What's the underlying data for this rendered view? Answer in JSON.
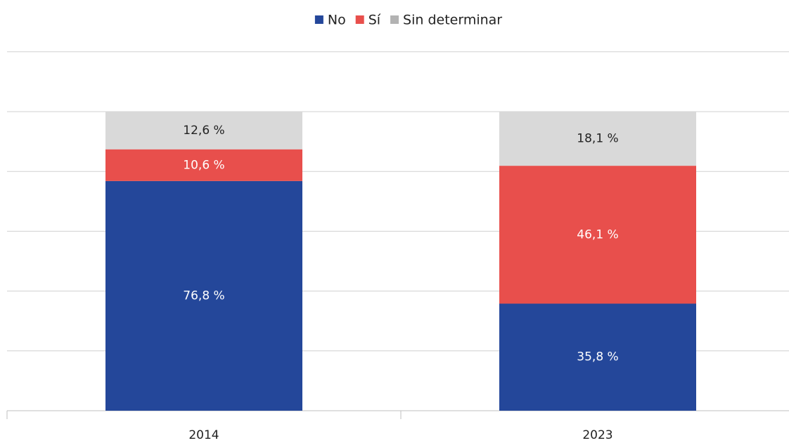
{
  "chart_data": {
    "type": "stacked_bar",
    "categories": [
      "2014",
      "2023"
    ],
    "series": [
      {
        "name": "No",
        "color": "#24479a",
        "values": [
          76.8,
          35.8
        ],
        "value_labels": [
          "76,8 %",
          "35,8 %"
        ]
      },
      {
        "name": "Sí",
        "color": "#e84f4c",
        "values": [
          10.6,
          46.1
        ],
        "value_labels": [
          "10,6 %",
          "46,1 %"
        ]
      },
      {
        "name": "Sin determinar",
        "color": "#d9d9d9",
        "values": [
          12.6,
          18.1
        ],
        "value_labels": [
          "12,6 %",
          "18,1 %"
        ]
      }
    ],
    "ylim": [
      0,
      120
    ],
    "yticks": [
      0,
      20,
      40,
      60,
      80,
      100,
      120
    ],
    "grid": true,
    "legend": "top"
  }
}
